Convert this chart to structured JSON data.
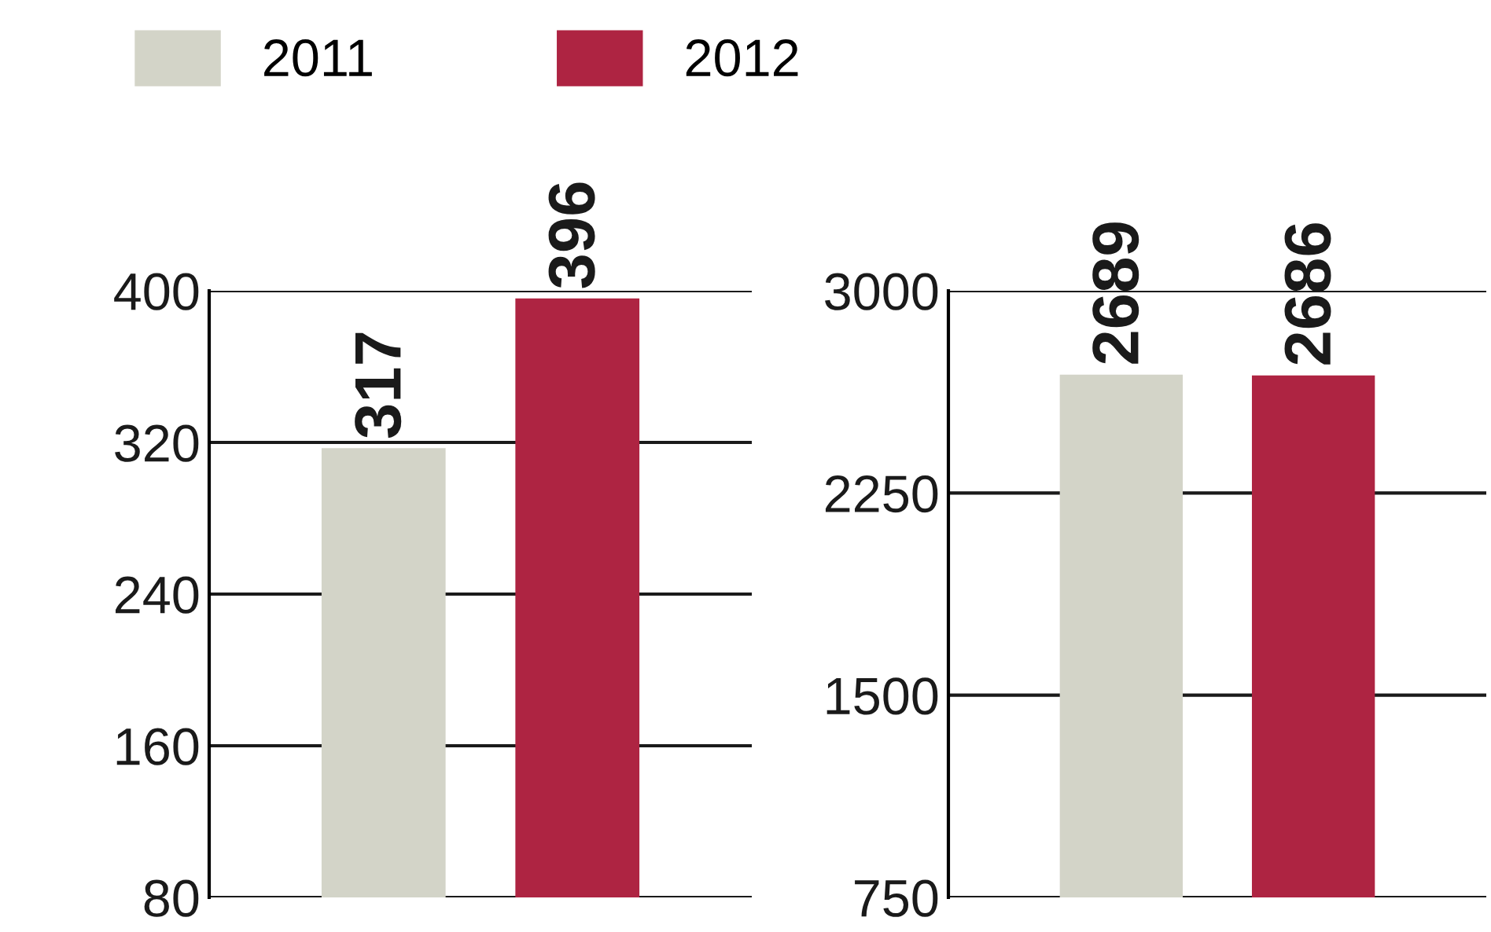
{
  "chart_data": [
    {
      "type": "bar",
      "categories": [
        null
      ],
      "series": [
        {
          "name": "2011",
          "color": "#d3d4c8",
          "values": [
            317
          ]
        },
        {
          "name": "2012",
          "color": "#ae2442",
          "values": [
            396
          ]
        }
      ],
      "ylim": [
        80,
        400
      ],
      "yticks": [
        80,
        160,
        240,
        320,
        400
      ],
      "grid": "y",
      "legend": "top left",
      "data_labels": true
    },
    {
      "type": "bar",
      "categories": [
        null,
        null
      ],
      "values": [
        2689,
        2686
      ],
      "colors": [
        "#d3d4c8",
        "#ae2442"
      ],
      "ylim": [
        750,
        3000
      ],
      "yticks": [
        750,
        1500,
        2250,
        3000
      ],
      "grid": "y",
      "data_labels": true
    }
  ]
}
